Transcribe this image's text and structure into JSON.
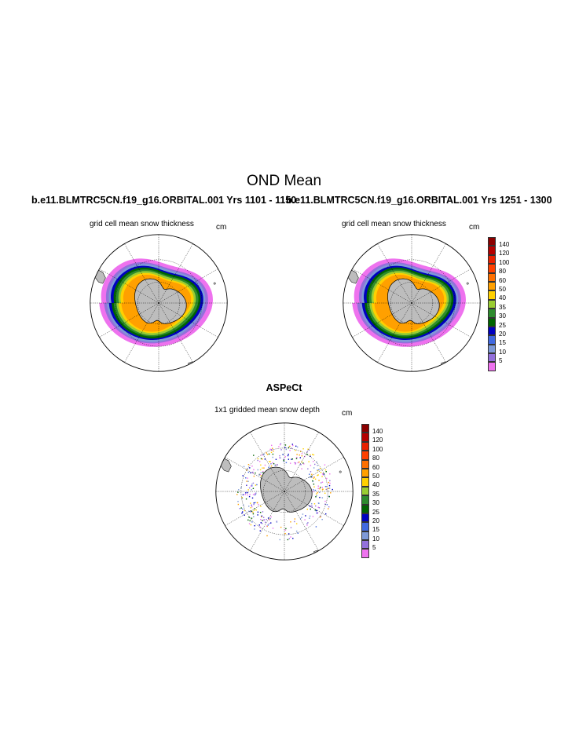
{
  "figure": {
    "title": "OND Mean",
    "case_left": "b.e11.BLMTRC5CN.f19_g16.ORBITAL.001  Yrs 1101 - 1150",
    "case_right": "b.e11.BLMTRC5CN.f19_g16.ORBITAL.001  Yrs 1251 - 1300",
    "obs_title": "ASPeCt"
  },
  "panels": {
    "left": {
      "label": "grid cell mean snow thickness",
      "unit": "cm"
    },
    "right": {
      "label": "grid cell mean snow thickness",
      "unit": "cm"
    },
    "bottom": {
      "label": "1x1 gridded mean snow depth",
      "unit": "cm"
    }
  },
  "colorbar": {
    "labels": [
      "140",
      "120",
      "100",
      "80",
      "60",
      "50",
      "40",
      "35",
      "30",
      "25",
      "20",
      "15",
      "10",
      "5"
    ],
    "colors": [
      "#8b0000",
      "#b40000",
      "#e82000",
      "#ff4000",
      "#ff7000",
      "#ffa000",
      "#ffd000",
      "#9acd32",
      "#2e8b2e",
      "#006400",
      "#0000c0",
      "#4169e1",
      "#7e9ad8",
      "#9370db",
      "#ee72ee"
    ]
  }
}
